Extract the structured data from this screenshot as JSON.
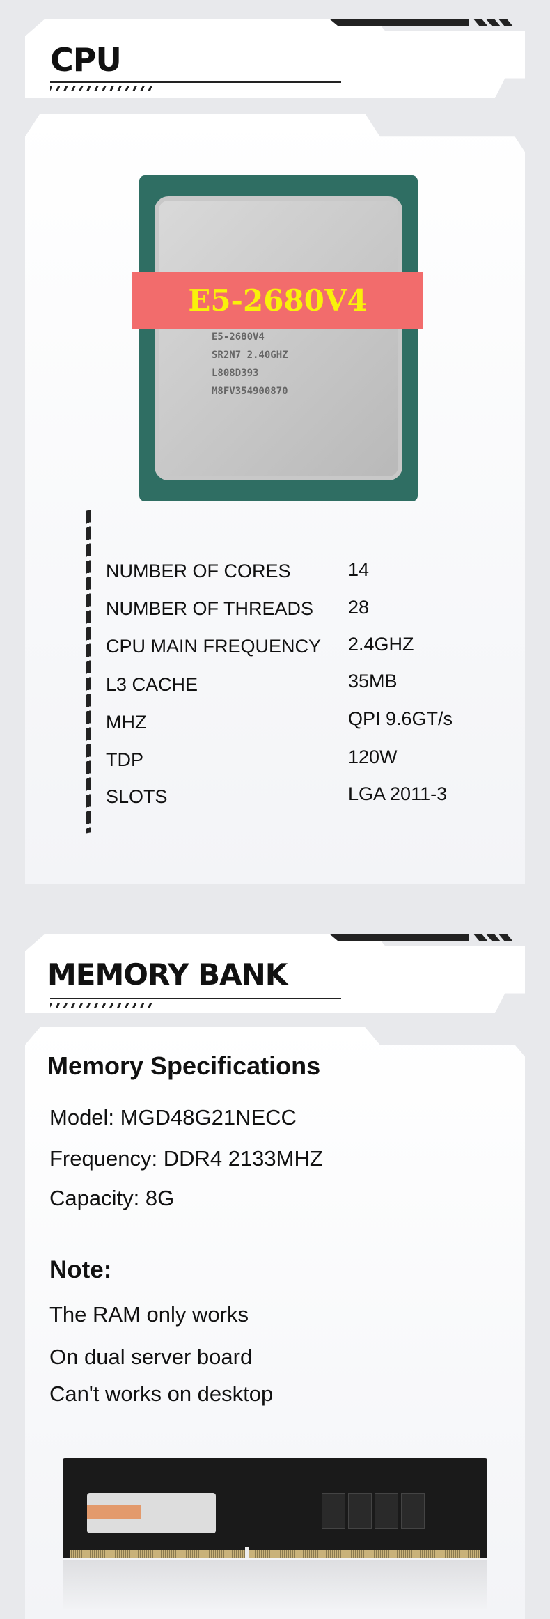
{
  "cpu_section": {
    "title": "CPU",
    "chip": {
      "banner": "E5-2680V4",
      "marking_lines": [
        "E5-2680V4",
        "SR2N7 2.40GHZ",
        "L808D393",
        "M8FV354900870"
      ]
    },
    "specs": [
      {
        "label": "NUMBER OF CORES",
        "value": "14"
      },
      {
        "label": "NUMBER OF THREADS",
        "value": "28"
      },
      {
        "label": "CPU MAIN FREQUENCY",
        "value": "2.4GHZ"
      },
      {
        "label": "L3 CACHE",
        "value": "35MB"
      },
      {
        "label": "MHZ",
        "value": "QPI 9.6GT/s"
      },
      {
        "label": "TDP",
        "value": "120W"
      },
      {
        "label": "SLOTS",
        "value": "LGA 2011-3"
      }
    ]
  },
  "memory_section": {
    "title": "MEMORY BANK",
    "specs_heading": "Memory Specifications",
    "specs": [
      "Model: MGD48G21NECC",
      "Frequency: DDR4 2133MHZ",
      "Capacity: 8G"
    ],
    "note_heading": "Note:",
    "notes": [
      "The RAM only works",
      "On dual server board",
      "Can't works on desktop"
    ]
  },
  "colors": {
    "banner_bg": "#f26c6c",
    "banner_text": "#f9f10a",
    "background": "#e8e9ec"
  }
}
